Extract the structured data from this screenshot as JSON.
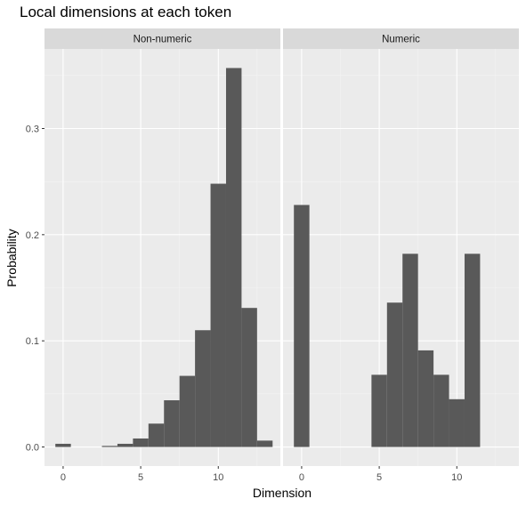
{
  "chart_data": {
    "type": "bar",
    "title": "Local dimensions at each token",
    "xlabel": "Dimension",
    "ylabel": "Probability",
    "colors": {
      "bar": "#595959",
      "panel": "#ebebeb",
      "strip": "#d9d9d9",
      "grid_major": "#ffffff",
      "grid_minor": "#f4f4f4",
      "tick_text": "#4d4d4d"
    },
    "xlim": [
      -1.2,
      14.0
    ],
    "ylim": [
      -0.018,
      0.375
    ],
    "x_ticks": [
      0,
      5,
      10
    ],
    "y_ticks": [
      0.0,
      0.1,
      0.2,
      0.3
    ],
    "y_tick_labels": [
      "0.0",
      "0.1",
      "0.2",
      "0.3"
    ],
    "bin_width": 1,
    "panels": [
      {
        "name": "Non-numeric",
        "bins": [
          {
            "x": 0,
            "y": 0.003
          },
          {
            "x": 1,
            "y": 0.0
          },
          {
            "x": 2,
            "y": 0.0
          },
          {
            "x": 3,
            "y": 0.001
          },
          {
            "x": 4,
            "y": 0.003
          },
          {
            "x": 5,
            "y": 0.008
          },
          {
            "x": 6,
            "y": 0.022
          },
          {
            "x": 7,
            "y": 0.044
          },
          {
            "x": 8,
            "y": 0.067
          },
          {
            "x": 9,
            "y": 0.11
          },
          {
            "x": 10,
            "y": 0.248
          },
          {
            "x": 11,
            "y": 0.357
          },
          {
            "x": 12,
            "y": 0.131
          },
          {
            "x": 13,
            "y": 0.006
          }
        ]
      },
      {
        "name": "Numeric",
        "bins": [
          {
            "x": 0,
            "y": 0.228
          },
          {
            "x": 5,
            "y": 0.068
          },
          {
            "x": 6,
            "y": 0.136
          },
          {
            "x": 7,
            "y": 0.182
          },
          {
            "x": 8,
            "y": 0.091
          },
          {
            "x": 9,
            "y": 0.068
          },
          {
            "x": 10,
            "y": 0.045
          },
          {
            "x": 11,
            "y": 0.182
          }
        ]
      }
    ]
  }
}
